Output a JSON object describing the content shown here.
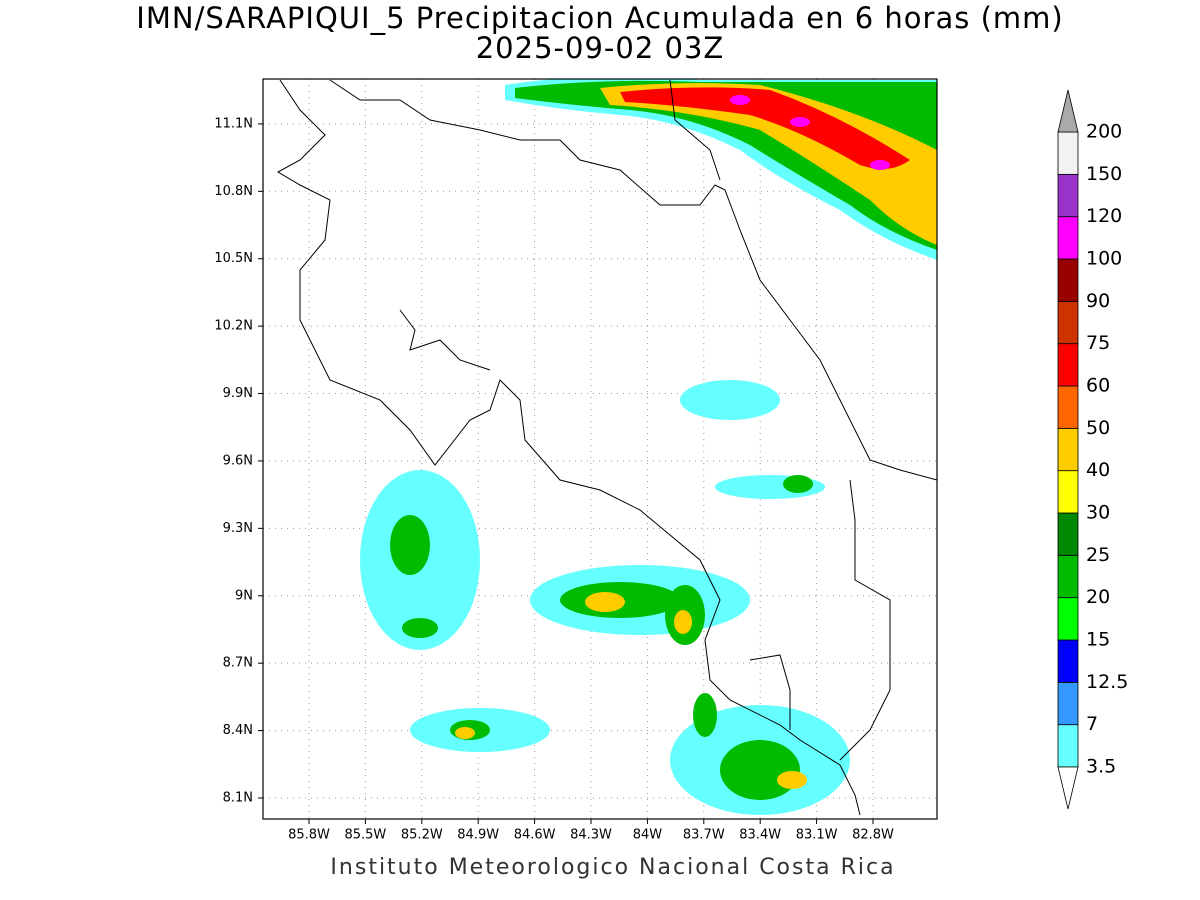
{
  "header": {
    "title": "IMN/SARAPIQUI_5 Precipitacion Acumulada en 6 horas (mm)",
    "subtitle": "2025-09-02 03Z"
  },
  "map": {
    "grid": true,
    "lat_ticks": [
      {
        "value": 8.1,
        "label": "8.1N"
      },
      {
        "value": 8.4,
        "label": "8.4N"
      },
      {
        "value": 8.7,
        "label": "8.7N"
      },
      {
        "value": 9,
        "label": "9N"
      },
      {
        "value": 9.3,
        "label": "9.3N"
      },
      {
        "value": 9.6,
        "label": "9.6N"
      },
      {
        "value": 9.9,
        "label": "9.9N"
      },
      {
        "value": 10.2,
        "label": "10.2N"
      },
      {
        "value": 10.5,
        "label": "10.5N"
      },
      {
        "value": 10.8,
        "label": "10.8N"
      },
      {
        "value": 11.1,
        "label": "11.1N"
      }
    ],
    "lon_ticks": [
      {
        "value": -85.8,
        "label": "85.8W"
      },
      {
        "value": -85.5,
        "label": "85.5W"
      },
      {
        "value": -85.2,
        "label": "85.2W"
      },
      {
        "value": -84.9,
        "label": "84.9W"
      },
      {
        "value": -84.6,
        "label": "84.6W"
      },
      {
        "value": -84.3,
        "label": "84.3W"
      },
      {
        "value": -84,
        "label": "84W"
      },
      {
        "value": -83.7,
        "label": "83.7W"
      },
      {
        "value": -83.4,
        "label": "83.4W"
      },
      {
        "value": -83.1,
        "label": "83.1W"
      },
      {
        "value": -82.8,
        "label": "82.8W"
      }
    ]
  },
  "colorbar": {
    "levels": [
      3.5,
      7,
      12.5,
      15,
      20,
      25,
      30,
      40,
      50,
      60,
      75,
      90,
      100,
      120,
      150,
      200
    ],
    "colors": [
      "#66ffff",
      "#3399ff",
      "#0000ff",
      "#00ff00",
      "#00bb00",
      "#008800",
      "#ffff00",
      "#ffcc00",
      "#ff6600",
      "#ff0000",
      "#cc3300",
      "#990000",
      "#ff00ff",
      "#9933cc",
      "#f2f2f2"
    ],
    "over_color": "#aaaaaa"
  },
  "footer": "Instituto Meteorologico Nacional Costa Rica"
}
